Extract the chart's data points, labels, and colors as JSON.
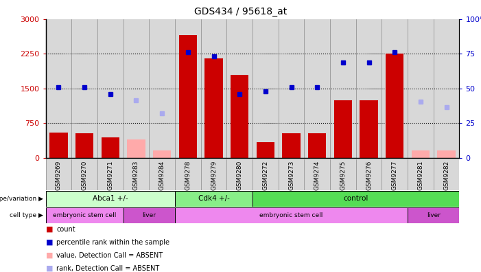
{
  "title": "GDS434 / 95618_at",
  "samples": [
    "GSM9269",
    "GSM9270",
    "GSM9271",
    "GSM9283",
    "GSM9284",
    "GSM9278",
    "GSM9279",
    "GSM9280",
    "GSM9272",
    "GSM9273",
    "GSM9274",
    "GSM9275",
    "GSM9276",
    "GSM9277",
    "GSM9281",
    "GSM9282"
  ],
  "count_values": [
    550,
    530,
    440,
    390,
    160,
    2650,
    2150,
    1800,
    330,
    530,
    530,
    1250,
    1250,
    2250,
    160,
    160
  ],
  "count_absent": [
    false,
    false,
    false,
    true,
    true,
    false,
    false,
    false,
    false,
    false,
    false,
    false,
    false,
    false,
    true,
    true
  ],
  "rank_values": [
    1530,
    1520,
    1380,
    1240,
    960,
    2280,
    2200,
    1370,
    1430,
    1520,
    1520,
    2060,
    2060,
    2280,
    1220,
    1100
  ],
  "rank_absent": [
    false,
    false,
    false,
    true,
    true,
    false,
    false,
    false,
    false,
    false,
    false,
    false,
    false,
    false,
    true,
    true
  ],
  "ylim_left": [
    0,
    3000
  ],
  "ylim_right": [
    0,
    100
  ],
  "yticks_left": [
    0,
    750,
    1500,
    2250,
    3000
  ],
  "yticks_right": [
    0,
    25,
    50,
    75,
    100
  ],
  "bar_color_present": "#cc0000",
  "bar_color_absent": "#ffaaaa",
  "rank_color_present": "#0000cc",
  "rank_color_absent": "#aaaaee",
  "genotype_groups": [
    {
      "label": "Abca1 +/-",
      "start": 0,
      "end": 5,
      "color": "#ccffcc"
    },
    {
      "label": "Cdk4 +/-",
      "start": 5,
      "end": 8,
      "color": "#88ee88"
    },
    {
      "label": "control",
      "start": 8,
      "end": 16,
      "color": "#55dd55"
    }
  ],
  "celltype_groups": [
    {
      "label": "embryonic stem cell",
      "start": 0,
      "end": 3,
      "color": "#ee88ee"
    },
    {
      "label": "liver",
      "start": 3,
      "end": 5,
      "color": "#cc55cc"
    },
    {
      "label": "embryonic stem cell",
      "start": 5,
      "end": 14,
      "color": "#ee88ee"
    },
    {
      "label": "liver",
      "start": 14,
      "end": 16,
      "color": "#cc55cc"
    }
  ],
  "legend_items": [
    {
      "label": "count",
      "color": "#cc0000"
    },
    {
      "label": "percentile rank within the sample",
      "color": "#0000cc"
    },
    {
      "label": "value, Detection Call = ABSENT",
      "color": "#ffaaaa"
    },
    {
      "label": "rank, Detection Call = ABSENT",
      "color": "#aaaaee"
    }
  ]
}
